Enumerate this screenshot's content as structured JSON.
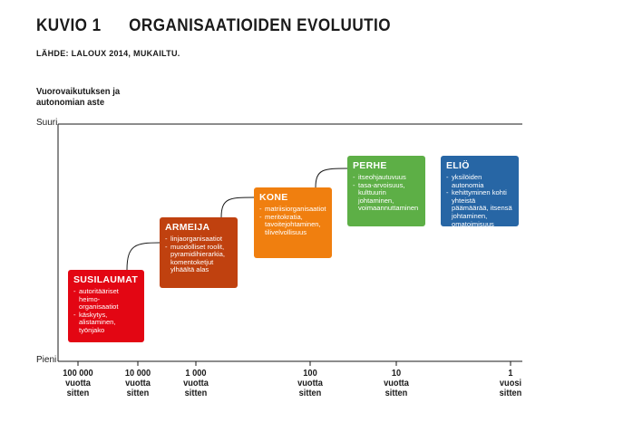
{
  "figure": {
    "number": "KUVIO 1",
    "title": "ORGANISAATIOIDEN EVOLUUTIO",
    "source": "LÄHDE: LALOUX 2014, MUKAILTU."
  },
  "y_axis": {
    "label_line1": "Vuorovaikutuksen ja",
    "label_line2": "autonomian aste",
    "top_label": "Suuri",
    "bottom_label": "Pieni"
  },
  "x_axis": {
    "ticks": [
      {
        "line1": "100 000",
        "line2": "vuotta",
        "line3": "sitten"
      },
      {
        "line1": "10 000",
        "line2": "vuotta",
        "line3": "sitten"
      },
      {
        "line1": "1 000",
        "line2": "vuotta",
        "line3": "sitten"
      },
      {
        "line1": "100",
        "line2": "vuotta",
        "line3": "sitten"
      },
      {
        "line1": "10",
        "line2": "vuotta",
        "line3": "sitten"
      },
      {
        "line1": "1",
        "line2": "vuosi",
        "line3": "sitten"
      }
    ]
  },
  "stages": [
    {
      "name": "SUSILAUMAT",
      "color": "#e30613",
      "items": [
        "autoritääriset heimo-organisaatiot",
        "käskytys, alistaminen, työnjako"
      ]
    },
    {
      "name": "ARMEIJA",
      "color": "#c0410f",
      "items": [
        "linjaorganisaatiot",
        "muodolliset roolit, pyramidihierarkia, komentoketjut ylhäältä alas"
      ]
    },
    {
      "name": "KONE",
      "color": "#f07f0f",
      "items": [
        "matriisiorganisaatiot",
        "meritokratia, tavoitejohtaminen, tilivelvollisuus"
      ]
    },
    {
      "name": "PERHE",
      "color": "#5daf46",
      "items": [
        "itseohjautuvuus",
        "tasa-arvoisuus, kulttuurin johtaminen, voimaannuttaminen"
      ]
    },
    {
      "name": "ELIÖ",
      "color": "#2766a5",
      "items": [
        "yksilöiden autonomia",
        "kehittyminen kohti yhteistä päämäärää, itsensä johtaminen, omatoimisuus"
      ]
    }
  ]
}
